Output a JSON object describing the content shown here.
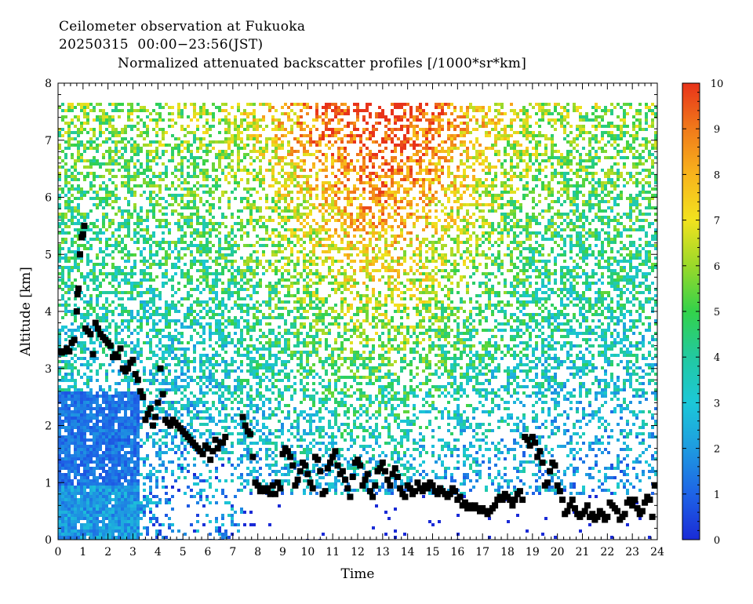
{
  "header": {
    "line1": "Ceilometer observation at Fukuoka",
    "line2": "20250315  00:00−23:56(JST)",
    "line3": "Normalized attenuated backscatter profiles [/1000*sr*km]"
  },
  "chart_data": {
    "type": "heatmap",
    "xlabel": "Time",
    "ylabel": "Altitude [km]",
    "xlim": [
      0,
      24
    ],
    "ylim": [
      0,
      8
    ],
    "x_ticks": [
      "0",
      "1",
      "2",
      "3",
      "4",
      "5",
      "6",
      "7",
      "8",
      "9",
      "10",
      "11",
      "12",
      "13",
      "14",
      "15",
      "16",
      "17",
      "18",
      "19",
      "20",
      "21",
      "22",
      "23",
      "24"
    ],
    "y_ticks": [
      "0",
      "1",
      "2",
      "3",
      "4",
      "5",
      "6",
      "7",
      "8"
    ],
    "colorbar": {
      "range": [
        0,
        10
      ],
      "ticks": [
        "0",
        "1",
        "2",
        "3",
        "4",
        "5",
        "6",
        "7",
        "8",
        "9",
        "10"
      ],
      "colors": [
        "#1a2bd6",
        "#1e63e6",
        "#1e9be0",
        "#1cc8d8",
        "#22c9a0",
        "#33d24a",
        "#9ad92a",
        "#f2e21e",
        "#f8b41c",
        "#f07a1a",
        "#e8331a"
      ]
    },
    "data_top_altitude": 7.65,
    "cloud_base_marker_color": "#000000",
    "cloud_base_points": [
      [
        0.05,
        3.3
      ],
      [
        0.15,
        3.28
      ],
      [
        0.25,
        3.3
      ],
      [
        0.35,
        3.35
      ],
      [
        0.45,
        3.3
      ],
      [
        0.55,
        3.45
      ],
      [
        0.65,
        3.5
      ],
      [
        0.75,
        4.0
      ],
      [
        0.78,
        4.3
      ],
      [
        0.82,
        4.4
      ],
      [
        0.88,
        5.0
      ],
      [
        0.95,
        5.3
      ],
      [
        1.0,
        5.35
      ],
      [
        1.05,
        5.5
      ],
      [
        1.1,
        3.7
      ],
      [
        1.2,
        3.65
      ],
      [
        1.3,
        3.6
      ],
      [
        1.4,
        3.25
      ],
      [
        1.5,
        3.8
      ],
      [
        1.6,
        3.7
      ],
      [
        1.7,
        3.6
      ],
      [
        1.8,
        3.55
      ],
      [
        1.9,
        3.5
      ],
      [
        2.0,
        3.45
      ],
      [
        2.1,
        3.4
      ],
      [
        2.2,
        3.2
      ],
      [
        2.3,
        3.25
      ],
      [
        2.4,
        3.2
      ],
      [
        2.5,
        3.35
      ],
      [
        2.6,
        3.0
      ],
      [
        2.7,
        2.95
      ],
      [
        2.8,
        3.0
      ],
      [
        2.9,
        3.1
      ],
      [
        3.0,
        3.15
      ],
      [
        3.1,
        2.9
      ],
      [
        3.2,
        2.8
      ],
      [
        3.3,
        2.6
      ],
      [
        3.4,
        2.5
      ],
      [
        3.5,
        2.1
      ],
      [
        3.6,
        2.2
      ],
      [
        3.7,
        2.3
      ],
      [
        3.8,
        2.0
      ],
      [
        3.9,
        2.15
      ],
      [
        4.0,
        2.4
      ],
      [
        4.1,
        3.0
      ],
      [
        4.2,
        2.55
      ],
      [
        4.3,
        2.1
      ],
      [
        4.4,
        2.05
      ],
      [
        4.5,
        2.0
      ],
      [
        4.6,
        2.1
      ],
      [
        4.7,
        2.05
      ],
      [
        4.8,
        2.0
      ],
      [
        4.9,
        1.95
      ],
      [
        5.0,
        1.9
      ],
      [
        5.1,
        1.85
      ],
      [
        5.2,
        1.8
      ],
      [
        5.3,
        1.75
      ],
      [
        5.4,
        1.7
      ],
      [
        5.5,
        1.65
      ],
      [
        5.6,
        1.6
      ],
      [
        5.7,
        1.55
      ],
      [
        5.8,
        1.5
      ],
      [
        5.9,
        1.65
      ],
      [
        6.0,
        1.6
      ],
      [
        6.1,
        1.4
      ],
      [
        6.2,
        1.55
      ],
      [
        6.3,
        1.75
      ],
      [
        6.4,
        1.6
      ],
      [
        6.5,
        1.7
      ],
      [
        6.6,
        1.7
      ],
      [
        6.7,
        1.8
      ],
      [
        7.4,
        2.15
      ],
      [
        7.5,
        2.0
      ],
      [
        7.6,
        1.9
      ],
      [
        7.7,
        1.85
      ],
      [
        7.8,
        1.45
      ],
      [
        7.9,
        1.0
      ],
      [
        8.0,
        0.95
      ],
      [
        8.1,
        0.85
      ],
      [
        8.2,
        0.9
      ],
      [
        8.3,
        0.85
      ],
      [
        8.4,
        0.9
      ],
      [
        8.5,
        0.8
      ],
      [
        8.6,
        0.95
      ],
      [
        8.7,
        0.8
      ],
      [
        8.8,
        1.0
      ],
      [
        8.9,
        0.9
      ],
      [
        9.0,
        1.5
      ],
      [
        9.1,
        1.6
      ],
      [
        9.2,
        1.55
      ],
      [
        9.3,
        1.45
      ],
      [
        9.4,
        1.3
      ],
      [
        9.5,
        0.95
      ],
      [
        9.6,
        1.05
      ],
      [
        9.7,
        1.2
      ],
      [
        9.8,
        1.35
      ],
      [
        9.9,
        1.3
      ],
      [
        10.0,
        1.15
      ],
      [
        10.1,
        1.0
      ],
      [
        10.2,
        0.9
      ],
      [
        10.3,
        1.45
      ],
      [
        10.4,
        1.4
      ],
      [
        10.5,
        1.2
      ],
      [
        10.6,
        0.8
      ],
      [
        10.7,
        0.85
      ],
      [
        10.8,
        1.25
      ],
      [
        10.9,
        1.35
      ],
      [
        11.0,
        1.45
      ],
      [
        11.1,
        1.55
      ],
      [
        11.2,
        1.3
      ],
      [
        11.3,
        1.15
      ],
      [
        11.4,
        1.2
      ],
      [
        11.5,
        1.05
      ],
      [
        11.6,
        0.9
      ],
      [
        11.7,
        0.75
      ],
      [
        11.8,
        1.1
      ],
      [
        11.9,
        1.35
      ],
      [
        12.0,
        1.4
      ],
      [
        12.1,
        1.3
      ],
      [
        12.2,
        0.95
      ],
      [
        12.3,
        1.05
      ],
      [
        12.4,
        1.15
      ],
      [
        12.5,
        0.85
      ],
      [
        12.6,
        0.75
      ],
      [
        12.7,
        0.95
      ],
      [
        12.8,
        1.2
      ],
      [
        12.9,
        1.25
      ],
      [
        13.0,
        1.35
      ],
      [
        13.1,
        1.2
      ],
      [
        13.2,
        1.05
      ],
      [
        13.3,
        0.95
      ],
      [
        13.4,
        1.15
      ],
      [
        13.5,
        1.25
      ],
      [
        13.6,
        1.1
      ],
      [
        13.7,
        0.9
      ],
      [
        13.8,
        0.8
      ],
      [
        13.9,
        0.75
      ],
      [
        14.0,
        0.95
      ],
      [
        14.1,
        0.9
      ],
      [
        14.2,
        0.8
      ],
      [
        14.3,
        0.85
      ],
      [
        14.4,
        1.0
      ],
      [
        14.5,
        0.9
      ],
      [
        14.6,
        0.85
      ],
      [
        14.7,
        0.95
      ],
      [
        14.8,
        0.9
      ],
      [
        14.9,
        1.0
      ],
      [
        15.0,
        0.95
      ],
      [
        15.1,
        0.85
      ],
      [
        15.2,
        0.8
      ],
      [
        15.3,
        0.9
      ],
      [
        15.4,
        0.85
      ],
      [
        15.5,
        0.8
      ],
      [
        15.6,
        0.75
      ],
      [
        15.7,
        0.8
      ],
      [
        15.8,
        0.9
      ],
      [
        15.9,
        0.85
      ],
      [
        16.0,
        0.7
      ],
      [
        16.1,
        0.75
      ],
      [
        16.2,
        0.6
      ],
      [
        16.3,
        0.65
      ],
      [
        16.4,
        0.55
      ],
      [
        16.5,
        0.6
      ],
      [
        16.6,
        0.55
      ],
      [
        16.7,
        0.6
      ],
      [
        16.8,
        0.55
      ],
      [
        16.9,
        0.5
      ],
      [
        17.0,
        0.55
      ],
      [
        17.1,
        0.5
      ],
      [
        17.2,
        0.45
      ],
      [
        17.3,
        0.5
      ],
      [
        17.4,
        0.55
      ],
      [
        17.5,
        0.6
      ],
      [
        17.6,
        0.7
      ],
      [
        17.7,
        0.75
      ],
      [
        17.8,
        0.7
      ],
      [
        17.9,
        0.8
      ],
      [
        18.0,
        0.75
      ],
      [
        18.1,
        0.7
      ],
      [
        18.2,
        0.6
      ],
      [
        18.3,
        0.7
      ],
      [
        18.4,
        0.8
      ],
      [
        18.5,
        0.85
      ],
      [
        18.6,
        0.7
      ],
      [
        18.7,
        1.8
      ],
      [
        18.8,
        1.75
      ],
      [
        18.9,
        1.65
      ],
      [
        19.0,
        1.8
      ],
      [
        19.1,
        1.7
      ],
      [
        19.2,
        1.45
      ],
      [
        19.3,
        1.55
      ],
      [
        19.4,
        1.35
      ],
      [
        19.5,
        0.95
      ],
      [
        19.6,
        1.0
      ],
      [
        19.7,
        1.2
      ],
      [
        19.8,
        1.35
      ],
      [
        19.9,
        1.3
      ],
      [
        20.0,
        0.95
      ],
      [
        20.1,
        0.85
      ],
      [
        20.2,
        0.7
      ],
      [
        20.3,
        0.45
      ],
      [
        20.4,
        0.5
      ],
      [
        20.5,
        0.6
      ],
      [
        20.6,
        0.7
      ],
      [
        20.7,
        0.55
      ],
      [
        20.8,
        0.45
      ],
      [
        20.9,
        0.4
      ],
      [
        21.0,
        0.45
      ],
      [
        21.1,
        0.5
      ],
      [
        21.2,
        0.6
      ],
      [
        21.3,
        0.4
      ],
      [
        21.4,
        0.45
      ],
      [
        21.5,
        0.35
      ],
      [
        21.6,
        0.4
      ],
      [
        21.7,
        0.5
      ],
      [
        21.8,
        0.45
      ],
      [
        21.9,
        0.35
      ],
      [
        22.0,
        0.4
      ],
      [
        22.1,
        0.65
      ],
      [
        22.2,
        0.6
      ],
      [
        22.3,
        0.55
      ],
      [
        22.4,
        0.5
      ],
      [
        22.5,
        0.35
      ],
      [
        22.6,
        0.4
      ],
      [
        22.7,
        0.45
      ],
      [
        22.8,
        0.65
      ],
      [
        22.9,
        0.7
      ],
      [
        23.0,
        0.6
      ],
      [
        23.1,
        0.7
      ],
      [
        23.2,
        0.55
      ],
      [
        23.3,
        0.45
      ],
      [
        23.4,
        0.5
      ],
      [
        23.5,
        0.65
      ],
      [
        23.6,
        0.75
      ],
      [
        23.7,
        0.7
      ],
      [
        23.8,
        0.4
      ],
      [
        23.9,
        0.95
      ]
    ]
  }
}
